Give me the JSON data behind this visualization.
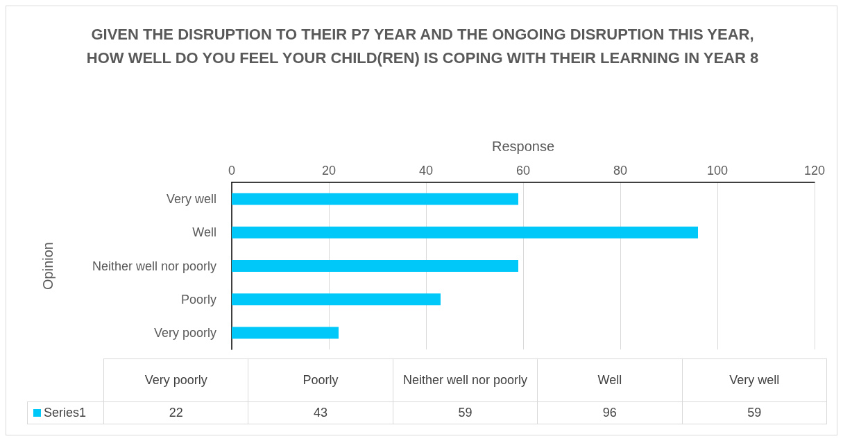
{
  "chart_data": {
    "type": "bar",
    "orientation": "horizontal",
    "title": "GIVEN THE DISRUPTION TO THEIR P7 YEAR AND THE ONGOING DISRUPTION THIS YEAR, HOW WELL DO YOU FEEL YOUR CHILD(REN) IS COPING WITH THEIR LEARNING IN YEAR 8",
    "xlabel": "Response",
    "ylabel": "Opinion",
    "categories": [
      "Very well",
      "Well",
      "Neither well nor poorly",
      "Poorly",
      "Very poorly"
    ],
    "series": [
      {
        "name": "Series1",
        "color": "#00c8f8",
        "values": [
          59,
          96,
          59,
          43,
          22
        ]
      }
    ],
    "xlim": [
      0,
      120
    ],
    "xticks": [
      0,
      20,
      40,
      60,
      80,
      100,
      120
    ],
    "grid": "x",
    "value_labels": [
      "59",
      "96",
      "59",
      "43",
      "22"
    ]
  }
}
